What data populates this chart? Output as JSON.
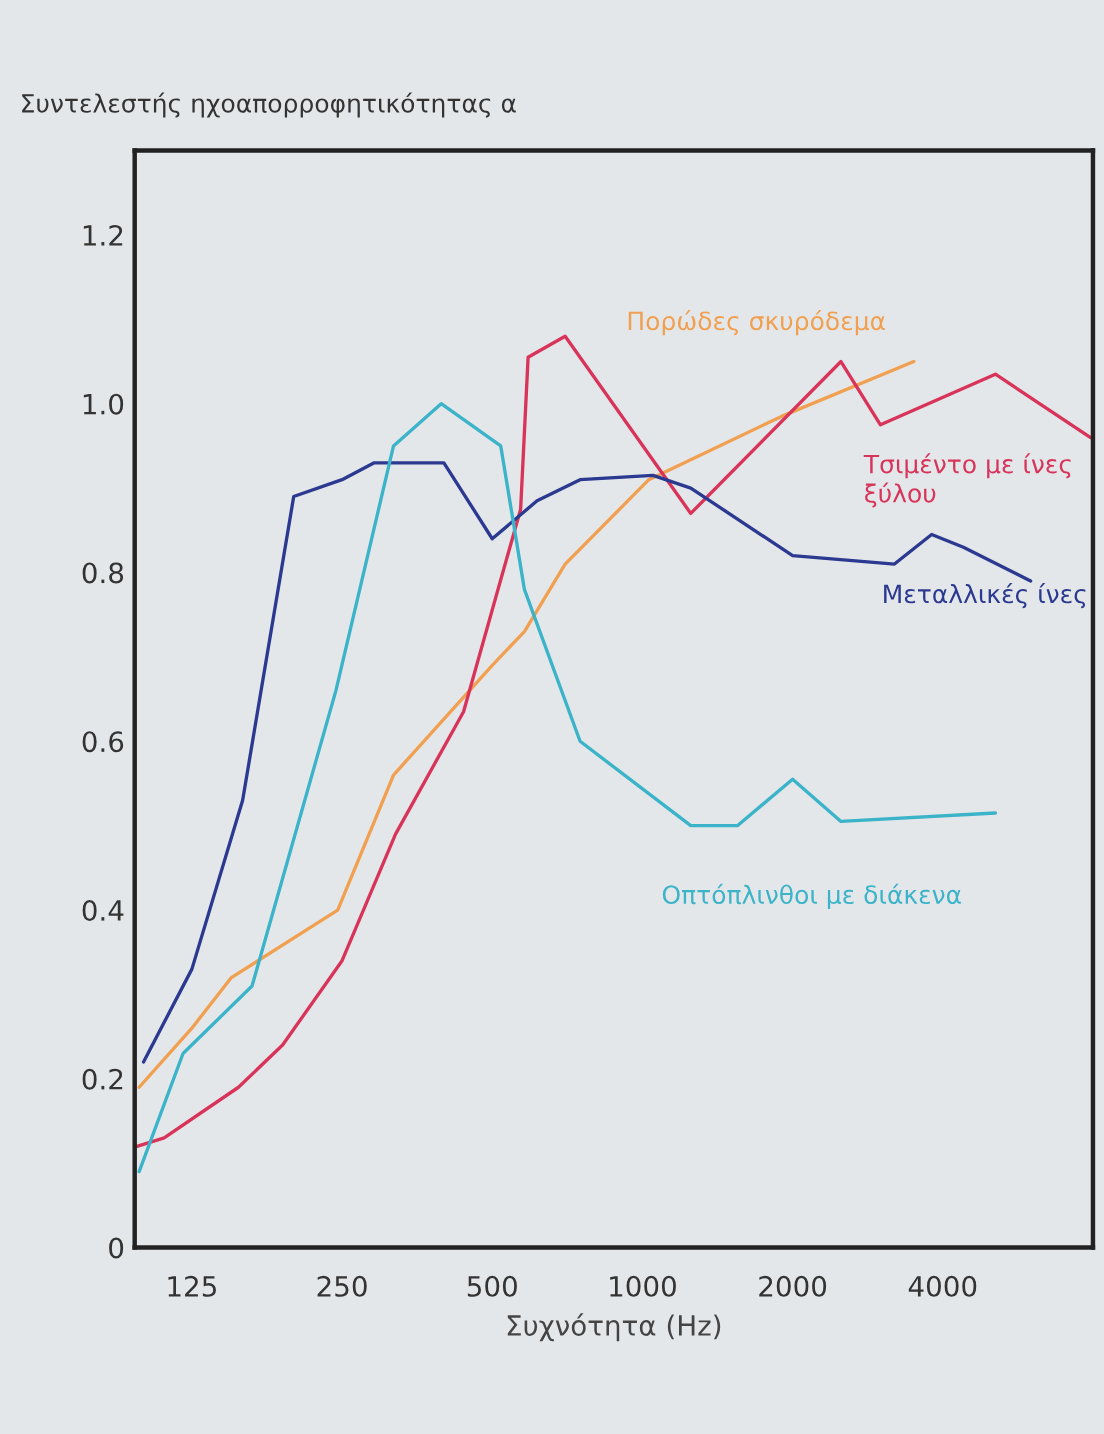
{
  "chart_data": {
    "type": "line",
    "xlabel": "Συχνότητα (Hz)",
    "ylabel": "Συντελεστής ηχοαπορροφητικότητας α",
    "log": "x",
    "xlim": [
      96,
      8000
    ],
    "xticks": [
      125,
      250,
      500,
      1000,
      2000,
      4000
    ],
    "ylim": [
      0,
      1.3
    ],
    "yticks": [
      0,
      0.2,
      0.4,
      0.6,
      0.8,
      {
        "value": 1.0,
        "label": "1.0"
      },
      1.2
    ],
    "grid": false,
    "legend": false,
    "marker": "none",
    "line_style": "solid",
    "series": [
      {
        "name": "Πορώδες σκυρόδεμα",
        "color": "#f0a050",
        "x": [
          98,
          125,
          150,
          245,
          317,
          500,
          580,
          700,
          1030,
          1900,
          3500
        ],
        "values": [
          0.19,
          0.26,
          0.32,
          0.4,
          0.56,
          0.69,
          0.73,
          0.81,
          0.91,
          0.985,
          1.05
        ]
      },
      {
        "name": "Τσιμέντο με ίνες\nξύλου",
        "color": "#d8345a",
        "x": [
          97,
          110,
          155,
          190,
          250,
          320,
          438,
          570,
          590,
          700,
          1250,
          2500,
          3000,
          5100,
          7900
        ],
        "values": [
          0.12,
          0.13,
          0.19,
          0.24,
          0.34,
          0.49,
          0.635,
          0.875,
          1.055,
          1.08,
          0.87,
          1.05,
          0.975,
          1.035,
          0.96
        ]
      },
      {
        "name": "Μεταλλικές ίνες",
        "color": "#2b3990",
        "x": [
          100,
          125,
          158,
          200,
          250,
          290,
          400,
          500,
          615,
          750,
          1050,
          1250,
          2000,
          3200,
          3800,
          4400,
          6000
        ],
        "values": [
          0.22,
          0.33,
          0.53,
          0.89,
          0.91,
          0.93,
          0.93,
          0.84,
          0.885,
          0.91,
          0.915,
          0.9,
          0.82,
          0.81,
          0.845,
          0.83,
          0.79
        ]
      },
      {
        "name": "Οπτόπλινθοι με διάκενα",
        "color": "#3bb3c8",
        "x": [
          98,
          120,
          165,
          243,
          317,
          395,
          520,
          580,
          750,
          1250,
          1550,
          2000,
          2500,
          5100
        ],
        "values": [
          0.09,
          0.23,
          0.31,
          0.66,
          0.95,
          1.0,
          0.95,
          0.78,
          0.6,
          0.5,
          0.5,
          0.555,
          0.505,
          0.515
        ]
      }
    ]
  }
}
